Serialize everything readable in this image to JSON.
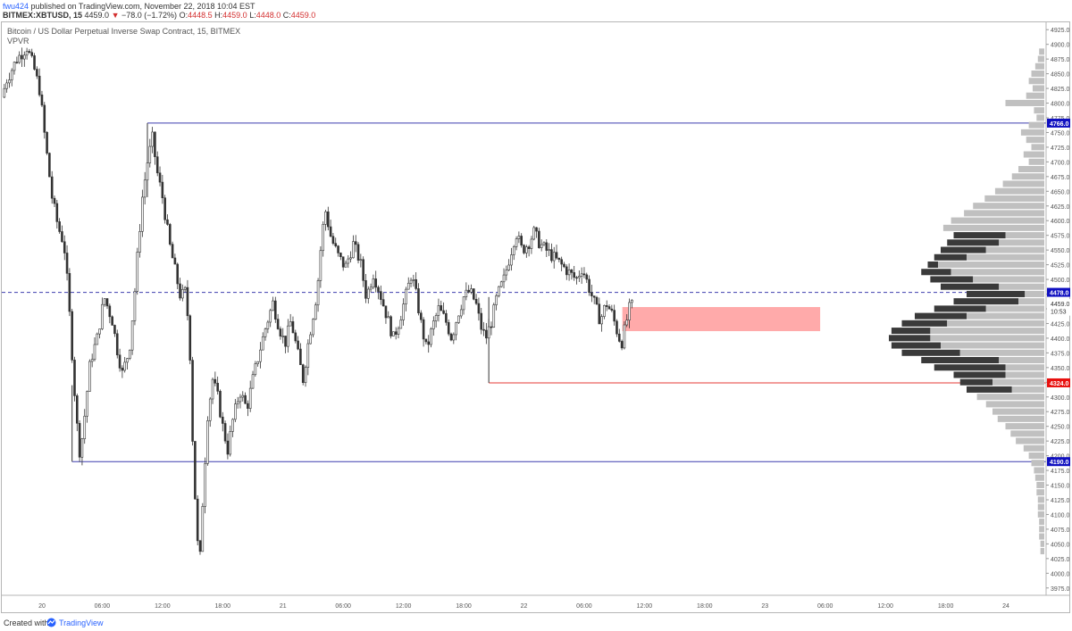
{
  "header": {
    "user": "fwu424",
    "published_text": " published on TradingView.com, November 22, 2018 10:04 EST",
    "symbol": "BITMEX:XBTUSD, 15",
    "last_price": "4459.0",
    "change_arrow": "▼",
    "change": "−78.0 (−1.72%)",
    "o_label": "O:",
    "o_value": "4448.5",
    "h_label": "H:",
    "h_value": "4459.0",
    "l_label": "L:",
    "l_value": "4448.0",
    "c_label": "C:",
    "c_value": "4459.0"
  },
  "legend": {
    "title": "Bitcoin / US Dollar Perpetual Inverse Swap Contract, 15, BITMEX",
    "indicator": "VPVR"
  },
  "footer": {
    "created_with": "Created with",
    "brand": "TradingView"
  },
  "colors": {
    "candle": "#333333",
    "level_line": "#3f3faf",
    "support_line": "#e53935",
    "dashed_line": "#3f3faf",
    "zone": "#ffaaaa",
    "badge_blue": "#1010c0",
    "badge_red": "#e8110f",
    "vp_dark": "#3a3a3a",
    "vp_light": "#c0c0c0"
  },
  "chart_data": {
    "type": "candlestick",
    "y_min": 3962.5,
    "y_max": 4937.5,
    "y_ticks": [
      4925.0,
      4900.0,
      4875.0,
      4850.0,
      4825.0,
      4800.0,
      4775.0,
      4750.0,
      4725.0,
      4700.0,
      4675.0,
      4650.0,
      4625.0,
      4600.0,
      4575.0,
      4550.0,
      4525.0,
      4500.0,
      4475.0,
      4450.0,
      4425.0,
      4400.0,
      4375.0,
      4350.0,
      4325.0,
      4300.0,
      4275.0,
      4250.0,
      4225.0,
      4200.0,
      4175.0,
      4150.0,
      4125.0,
      4100.0,
      4075.0,
      4050.0,
      4025.0,
      4000.0,
      3975.0
    ],
    "x_ticks": [
      "20",
      "06:00",
      "12:00",
      "18:00",
      "21",
      "06:00",
      "12:00",
      "18:00",
      "22",
      "06:00",
      "12:00",
      "18:00",
      "23",
      "06:00",
      "12:00",
      "18:00",
      "24"
    ],
    "x_tick_hours": [
      0,
      6,
      12,
      18,
      24,
      30,
      36,
      42,
      48,
      54,
      60,
      66,
      72,
      78,
      84,
      90,
      96
    ],
    "x_hour_start": -4,
    "x_hour_end": 100,
    "price_badges": [
      {
        "label": "4766.0",
        "value": 4766.0,
        "kind": "blue"
      },
      {
        "label": "4478.0",
        "value": 4478.0,
        "kind": "blue"
      },
      {
        "label": "4459.0",
        "value": 4459.0,
        "kind": "plain"
      },
      {
        "label": "10:53",
        "value": 4446.0,
        "kind": "plain"
      },
      {
        "label": "4324.0",
        "value": 4324.0,
        "kind": "red"
      },
      {
        "label": "4190.0",
        "value": 4190.0,
        "kind": "blue"
      }
    ],
    "horizontal_lines": [
      {
        "name": "resistance-high",
        "value": 4766.0,
        "start_hour": 10.5,
        "style": "solid",
        "color": "level"
      },
      {
        "name": "dashed-level",
        "value": 4478.0,
        "start_hour": -4,
        "style": "dashed",
        "color": "level"
      },
      {
        "name": "support-level",
        "value": 4324.0,
        "start_hour": 44.5,
        "style": "solid",
        "color": "support"
      },
      {
        "name": "support-low",
        "value": 4190.0,
        "start_hour": 3,
        "style": "solid",
        "color": "level"
      }
    ],
    "zone": {
      "start_hour": 57.8,
      "end_hour": 77.5,
      "top": 4453,
      "bottom": 4412
    },
    "price_anchors": [
      [
        -4,
        4810
      ],
      [
        -3.5,
        4840
      ],
      [
        -2.5,
        4875
      ],
      [
        -1.5,
        4895
      ],
      [
        -0.8,
        4860
      ],
      [
        -0.2,
        4820
      ],
      [
        0.3,
        4740
      ],
      [
        1,
        4640
      ],
      [
        1.6,
        4590
      ],
      [
        2.2,
        4560
      ],
      [
        2.6,
        4480
      ],
      [
        2.9,
        4400
      ],
      [
        3.2,
        4320
      ],
      [
        3.5,
        4250
      ],
      [
        3.8,
        4200
      ],
      [
        4.2,
        4260
      ],
      [
        4.8,
        4360
      ],
      [
        5.5,
        4400
      ],
      [
        6.2,
        4470
      ],
      [
        7,
        4430
      ],
      [
        7.5,
        4380
      ],
      [
        8,
        4340
      ],
      [
        8.7,
        4380
      ],
      [
        9.2,
        4470
      ],
      [
        9.6,
        4560
      ],
      [
        10,
        4640
      ],
      [
        10.5,
        4700
      ],
      [
        11,
        4740
      ],
      [
        11.5,
        4680
      ],
      [
        12,
        4640
      ],
      [
        12.7,
        4560
      ],
      [
        13.2,
        4520
      ],
      [
        13.8,
        4470
      ],
      [
        14.3,
        4480
      ],
      [
        14.7,
        4400
      ],
      [
        15,
        4230
      ],
      [
        15.4,
        4070
      ],
      [
        15.7,
        4010
      ],
      [
        16,
        4120
      ],
      [
        16.5,
        4270
      ],
      [
        17,
        4330
      ],
      [
        17.5,
        4300
      ],
      [
        18,
        4250
      ],
      [
        18.5,
        4210
      ],
      [
        19,
        4260
      ],
      [
        19.7,
        4310
      ],
      [
        20.4,
        4280
      ],
      [
        21,
        4330
      ],
      [
        21.7,
        4380
      ],
      [
        22.3,
        4420
      ],
      [
        23,
        4460
      ],
      [
        23.6,
        4420
      ],
      [
        24.2,
        4390
      ],
      [
        24.8,
        4430
      ],
      [
        25.4,
        4380
      ],
      [
        26,
        4330
      ],
      [
        26.5,
        4390
      ],
      [
        27,
        4440
      ],
      [
        27.4,
        4480
      ],
      [
        27.8,
        4560
      ],
      [
        28.2,
        4620
      ],
      [
        28.8,
        4570
      ],
      [
        29.5,
        4540
      ],
      [
        30.2,
        4520
      ],
      [
        31,
        4560
      ],
      [
        31.7,
        4530
      ],
      [
        32.3,
        4470
      ],
      [
        33,
        4510
      ],
      [
        33.6,
        4480
      ],
      [
        34.3,
        4440
      ],
      [
        35,
        4400
      ],
      [
        35.6,
        4430
      ],
      [
        36.2,
        4470
      ],
      [
        36.8,
        4510
      ],
      [
        37.3,
        4470
      ],
      [
        37.8,
        4420
      ],
      [
        38.3,
        4380
      ],
      [
        38.9,
        4420
      ],
      [
        39.5,
        4450
      ],
      [
        40.2,
        4430
      ],
      [
        40.8,
        4400
      ],
      [
        41.4,
        4440
      ],
      [
        42,
        4470
      ],
      [
        42.6,
        4480
      ],
      [
        43.2,
        4460
      ],
      [
        43.7,
        4420
      ],
      [
        44.2,
        4400
      ],
      [
        44.8,
        4430
      ],
      [
        45.3,
        4470
      ],
      [
        46,
        4500
      ],
      [
        46.6,
        4540
      ],
      [
        47.2,
        4580
      ],
      [
        47.8,
        4550
      ],
      [
        48.4,
        4560
      ],
      [
        49,
        4580
      ],
      [
        49.6,
        4560
      ],
      [
        50.2,
        4550
      ],
      [
        50.8,
        4540
      ],
      [
        51.4,
        4530
      ],
      [
        52,
        4520
      ],
      [
        52.6,
        4510
      ],
      [
        53.2,
        4500
      ],
      [
        53.8,
        4520
      ],
      [
        54.4,
        4490
      ],
      [
        55,
        4460
      ],
      [
        55.6,
        4430
      ],
      [
        56.2,
        4460
      ],
      [
        56.8,
        4440
      ],
      [
        57.3,
        4410
      ],
      [
        57.7,
        4390
      ],
      [
        58.1,
        4420
      ],
      [
        58.5,
        4450
      ],
      [
        58.9,
        4459
      ]
    ],
    "volume_profile": [
      {
        "price": 4887.5,
        "total": 4,
        "up": 0
      },
      {
        "price": 4875,
        "total": 5,
        "up": 0
      },
      {
        "price": 4862.5,
        "total": 7,
        "up": 0
      },
      {
        "price": 4850,
        "total": 10,
        "up": 0
      },
      {
        "price": 4837.5,
        "total": 12,
        "up": 0
      },
      {
        "price": 4825,
        "total": 9,
        "up": 0
      },
      {
        "price": 4812.5,
        "total": 14,
        "up": 0
      },
      {
        "price": 4800,
        "total": 30,
        "up": 0
      },
      {
        "price": 4787.5,
        "total": 8,
        "up": 0
      },
      {
        "price": 4775,
        "total": 6,
        "up": 0
      },
      {
        "price": 4762.5,
        "total": 12,
        "up": 0
      },
      {
        "price": 4750,
        "total": 18,
        "up": 0
      },
      {
        "price": 4737.5,
        "total": 14,
        "up": 0
      },
      {
        "price": 4725,
        "total": 10,
        "up": 0
      },
      {
        "price": 4712.5,
        "total": 16,
        "up": 0
      },
      {
        "price": 4700,
        "total": 12,
        "up": 0
      },
      {
        "price": 4687.5,
        "total": 20,
        "up": 0
      },
      {
        "price": 4675,
        "total": 25,
        "up": 0
      },
      {
        "price": 4662.5,
        "total": 32,
        "up": 0
      },
      {
        "price": 4650,
        "total": 38,
        "up": 0
      },
      {
        "price": 4637.5,
        "total": 46,
        "up": 0
      },
      {
        "price": 4625,
        "total": 55,
        "up": 0
      },
      {
        "price": 4612.5,
        "total": 62,
        "up": 0
      },
      {
        "price": 4600,
        "total": 72,
        "up": 0
      },
      {
        "price": 4587.5,
        "total": 78,
        "up": 0
      },
      {
        "price": 4575,
        "total": 70,
        "up": 30
      },
      {
        "price": 4562.5,
        "total": 75,
        "up": 35
      },
      {
        "price": 4550,
        "total": 80,
        "up": 45
      },
      {
        "price": 4537.5,
        "total": 85,
        "up": 60
      },
      {
        "price": 4525,
        "total": 90,
        "up": 82
      },
      {
        "price": 4512.5,
        "total": 95,
        "up": 72
      },
      {
        "price": 4500,
        "total": 88,
        "up": 55
      },
      {
        "price": 4487.5,
        "total": 80,
        "up": 35
      },
      {
        "price": 4475,
        "total": 60,
        "up": 15
      },
      {
        "price": 4462.5,
        "total": 70,
        "up": 20
      },
      {
        "price": 4450,
        "total": 85,
        "up": 45
      },
      {
        "price": 4437.5,
        "total": 100,
        "up": 60
      },
      {
        "price": 4425,
        "total": 110,
        "up": 75
      },
      {
        "price": 4412.5,
        "total": 118,
        "up": 88
      },
      {
        "price": 4400,
        "total": 120,
        "up": 88
      },
      {
        "price": 4387.5,
        "total": 118,
        "up": 80
      },
      {
        "price": 4375,
        "total": 110,
        "up": 65
      },
      {
        "price": 4362.5,
        "total": 95,
        "up": 35
      },
      {
        "price": 4350,
        "total": 85,
        "up": 30
      },
      {
        "price": 4337.5,
        "total": 70,
        "up": 30
      },
      {
        "price": 4325,
        "total": 65,
        "up": 40
      },
      {
        "price": 4312.5,
        "total": 60,
        "up": 25
      },
      {
        "price": 4300,
        "total": 52,
        "up": 0
      },
      {
        "price": 4287.5,
        "total": 45,
        "up": 0
      },
      {
        "price": 4275,
        "total": 40,
        "up": 0
      },
      {
        "price": 4262.5,
        "total": 36,
        "up": 0
      },
      {
        "price": 4250,
        "total": 30,
        "up": 0
      },
      {
        "price": 4237.5,
        "total": 26,
        "up": 0
      },
      {
        "price": 4225,
        "total": 22,
        "up": 0
      },
      {
        "price": 4212.5,
        "total": 16,
        "up": 0
      },
      {
        "price": 4200,
        "total": 12,
        "up": 0
      },
      {
        "price": 4187.5,
        "total": 10,
        "up": 0
      },
      {
        "price": 4175,
        "total": 8,
        "up": 0
      },
      {
        "price": 4162.5,
        "total": 7,
        "up": 0
      },
      {
        "price": 4150,
        "total": 6,
        "up": 0
      },
      {
        "price": 4137.5,
        "total": 6,
        "up": 0
      },
      {
        "price": 4125,
        "total": 5,
        "up": 0
      },
      {
        "price": 4112.5,
        "total": 5,
        "up": 0
      },
      {
        "price": 4100,
        "total": 5,
        "up": 0
      },
      {
        "price": 4087.5,
        "total": 4,
        "up": 0
      },
      {
        "price": 4075,
        "total": 4,
        "up": 0
      },
      {
        "price": 4062.5,
        "total": 4,
        "up": 0
      },
      {
        "price": 4050,
        "total": 3,
        "up": 0
      },
      {
        "price": 4037.5,
        "total": 3,
        "up": 0
      }
    ]
  }
}
